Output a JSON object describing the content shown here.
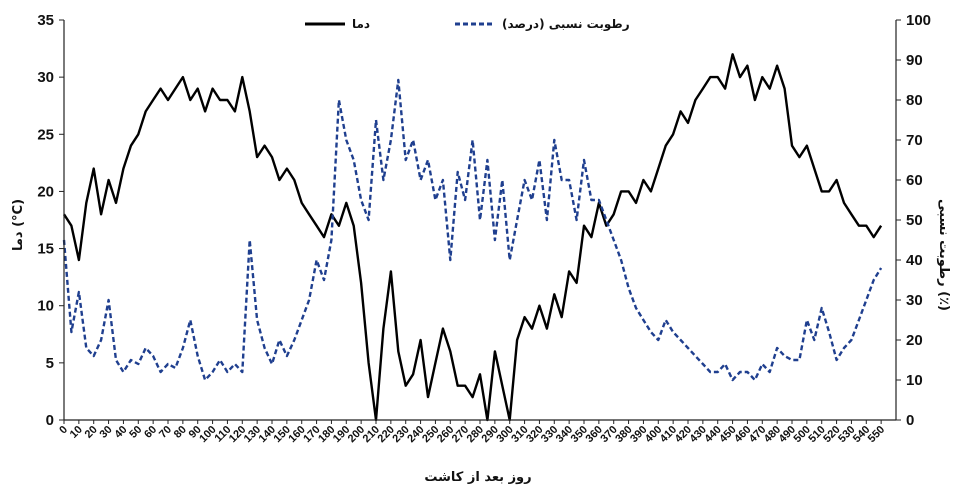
{
  "chart_data": {
    "type": "line",
    "xlabel": "روز بعد از کاشت",
    "ylabel_left": "دما (°C)",
    "ylabel_right": "رطوبت نسبی (٪)",
    "xlim": [
      0,
      560
    ],
    "ylim_left": [
      0,
      35
    ],
    "ylim_right": [
      0,
      100
    ],
    "x_ticks": [
      0,
      10,
      20,
      30,
      40,
      50,
      60,
      70,
      80,
      90,
      100,
      110,
      120,
      130,
      140,
      150,
      160,
      170,
      180,
      190,
      200,
      210,
      220,
      230,
      240,
      250,
      260,
      270,
      280,
      290,
      300,
      310,
      320,
      330,
      340,
      350,
      360,
      370,
      380,
      390,
      400,
      410,
      420,
      430,
      440,
      450,
      460,
      470,
      480,
      490,
      500,
      510,
      520,
      530,
      540,
      550
    ],
    "y_ticks_left": [
      0,
      5,
      10,
      15,
      20,
      25,
      30,
      35
    ],
    "y_ticks_right": [
      0,
      10,
      20,
      30,
      40,
      50,
      60,
      70,
      80,
      90,
      100
    ],
    "legend": "top-center",
    "series": [
      {
        "name": "دما",
        "axis": "left",
        "color": "#000000",
        "style": "solid",
        "x": [
          0,
          5,
          10,
          15,
          20,
          25,
          30,
          35,
          40,
          45,
          50,
          55,
          60,
          65,
          70,
          75,
          80,
          85,
          90,
          95,
          100,
          105,
          110,
          115,
          120,
          125,
          130,
          135,
          140,
          145,
          150,
          155,
          160,
          165,
          170,
          175,
          180,
          185,
          190,
          195,
          200,
          205,
          210,
          215,
          220,
          225,
          230,
          235,
          240,
          245,
          250,
          255,
          260,
          265,
          270,
          275,
          280,
          285,
          290,
          295,
          300,
          305,
          310,
          315,
          320,
          325,
          330,
          335,
          340,
          345,
          350,
          355,
          360,
          365,
          370,
          375,
          380,
          385,
          390,
          395,
          400,
          405,
          410,
          415,
          420,
          425,
          430,
          435,
          440,
          445,
          450,
          455,
          460,
          465,
          470,
          475,
          480,
          485,
          490,
          495,
          500,
          505,
          510,
          515,
          520,
          525,
          530,
          535,
          540,
          545,
          550
        ],
        "values": [
          18,
          17,
          14,
          19,
          22,
          18,
          21,
          19,
          22,
          24,
          25,
          27,
          28,
          29,
          28,
          29,
          30,
          28,
          29,
          27,
          29,
          28,
          28,
          27,
          30,
          27,
          23,
          24,
          23,
          21,
          22,
          21,
          19,
          18,
          17,
          16,
          18,
          17,
          19,
          17,
          12,
          5,
          0,
          8,
          13,
          6,
          3,
          4,
          7,
          2,
          5,
          8,
          6,
          3,
          3,
          2,
          4,
          0,
          6,
          3,
          0,
          7,
          9,
          8,
          10,
          8,
          11,
          9,
          13,
          12,
          17,
          16,
          19,
          17,
          18,
          20,
          20,
          19,
          21,
          20,
          22,
          24,
          25,
          27,
          26,
          28,
          29,
          30,
          30,
          29,
          32,
          30,
          31,
          28,
          30,
          29,
          31,
          29,
          24,
          23,
          24,
          22,
          20,
          20,
          21,
          19,
          18,
          17,
          17,
          16,
          17
        ]
      },
      {
        "name": "رطوبت نسبی (درصد)",
        "axis": "right",
        "color": "#1f3f8f",
        "style": "dashed",
        "x": [
          0,
          5,
          10,
          15,
          20,
          25,
          30,
          35,
          40,
          45,
          50,
          55,
          60,
          65,
          70,
          75,
          80,
          85,
          90,
          95,
          100,
          105,
          110,
          115,
          120,
          125,
          130,
          135,
          140,
          145,
          150,
          155,
          160,
          165,
          170,
          175,
          180,
          185,
          190,
          195,
          200,
          205,
          210,
          215,
          220,
          225,
          230,
          235,
          240,
          245,
          250,
          255,
          260,
          265,
          270,
          275,
          280,
          285,
          290,
          295,
          300,
          305,
          310,
          315,
          320,
          325,
          330,
          335,
          340,
          345,
          350,
          355,
          360,
          365,
          370,
          375,
          380,
          385,
          390,
          395,
          400,
          405,
          410,
          415,
          420,
          425,
          430,
          435,
          440,
          445,
          450,
          455,
          460,
          465,
          470,
          475,
          480,
          485,
          490,
          495,
          500,
          505,
          510,
          515,
          520,
          525,
          530,
          535,
          540,
          545,
          550
        ],
        "values": [
          45,
          22,
          32,
          18,
          16,
          20,
          30,
          15,
          12,
          15,
          14,
          18,
          16,
          12,
          14,
          13,
          18,
          25,
          16,
          10,
          12,
          15,
          12,
          14,
          12,
          45,
          25,
          18,
          14,
          20,
          16,
          20,
          25,
          30,
          40,
          35,
          45,
          80,
          70,
          65,
          55,
          50,
          75,
          60,
          70,
          85,
          65,
          70,
          60,
          65,
          55,
          60,
          40,
          62,
          55,
          70,
          50,
          65,
          45,
          60,
          40,
          50,
          60,
          55,
          65,
          50,
          70,
          60,
          60,
          50,
          65,
          55,
          55,
          50,
          45,
          40,
          33,
          28,
          25,
          22,
          20,
          25,
          22,
          20,
          18,
          16,
          14,
          12,
          12,
          14,
          10,
          12,
          12,
          10,
          14,
          12,
          18,
          16,
          15,
          15,
          25,
          20,
          28,
          22,
          15,
          18,
          20,
          25,
          30,
          35,
          38
        ]
      }
    ]
  }
}
